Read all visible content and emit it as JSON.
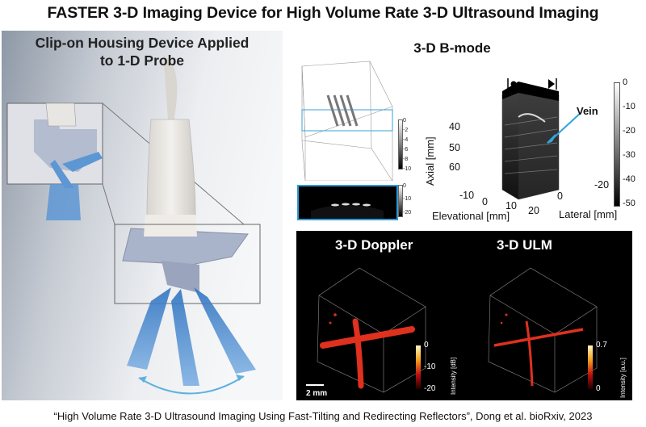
{
  "title": "FASTER 3-D Imaging Device for High Volume Rate 3-D Ultrasound Imaging",
  "left_panel": {
    "heading_line1": "Clip-on Housing Device Applied",
    "heading_line2": "to 1-D Probe"
  },
  "bmode": {
    "heading": "3-D B-mode",
    "small_bar_ticks": [
      "0",
      "-2",
      "-4",
      "-6",
      "-8",
      "-10"
    ],
    "slice_bar_ticks": [
      "0",
      "-10",
      "-20"
    ],
    "vein_label": "Vein",
    "axial_label": "Axial [mm]",
    "axial_ticks": [
      "40",
      "50",
      "60"
    ],
    "elevational_label": "Elevational [mm]",
    "elevational_ticks": [
      "-10",
      "0",
      "10",
      "20"
    ],
    "lateral_label": "Lateral [mm]",
    "lateral_ticks": [
      "0",
      "-20"
    ],
    "colorbar_ticks": [
      "0",
      "-10",
      "-20",
      "-30",
      "-40",
      "-50"
    ]
  },
  "doppler": {
    "title": "3-D Doppler",
    "colorbar_ticks": [
      "0",
      "-10",
      "-20"
    ],
    "colorbar_label": "Intensity [dB]",
    "scale_label": "2 mm"
  },
  "ulm": {
    "title": "3-D ULM",
    "colorbar_ticks": [
      "0.7",
      "0"
    ],
    "colorbar_label": "Intensity [a.u.]"
  },
  "citation": "“High Volume Rate 3-D Ultrasound Imaging Using Fast-Tilting and Redirecting Reflectors”, Dong et al. bioRxiv, 2023",
  "colors": {
    "reflector_blue": "#4a8fcf",
    "vessel_red": "#e0301e",
    "bmode_box": "#3aa0d8"
  }
}
